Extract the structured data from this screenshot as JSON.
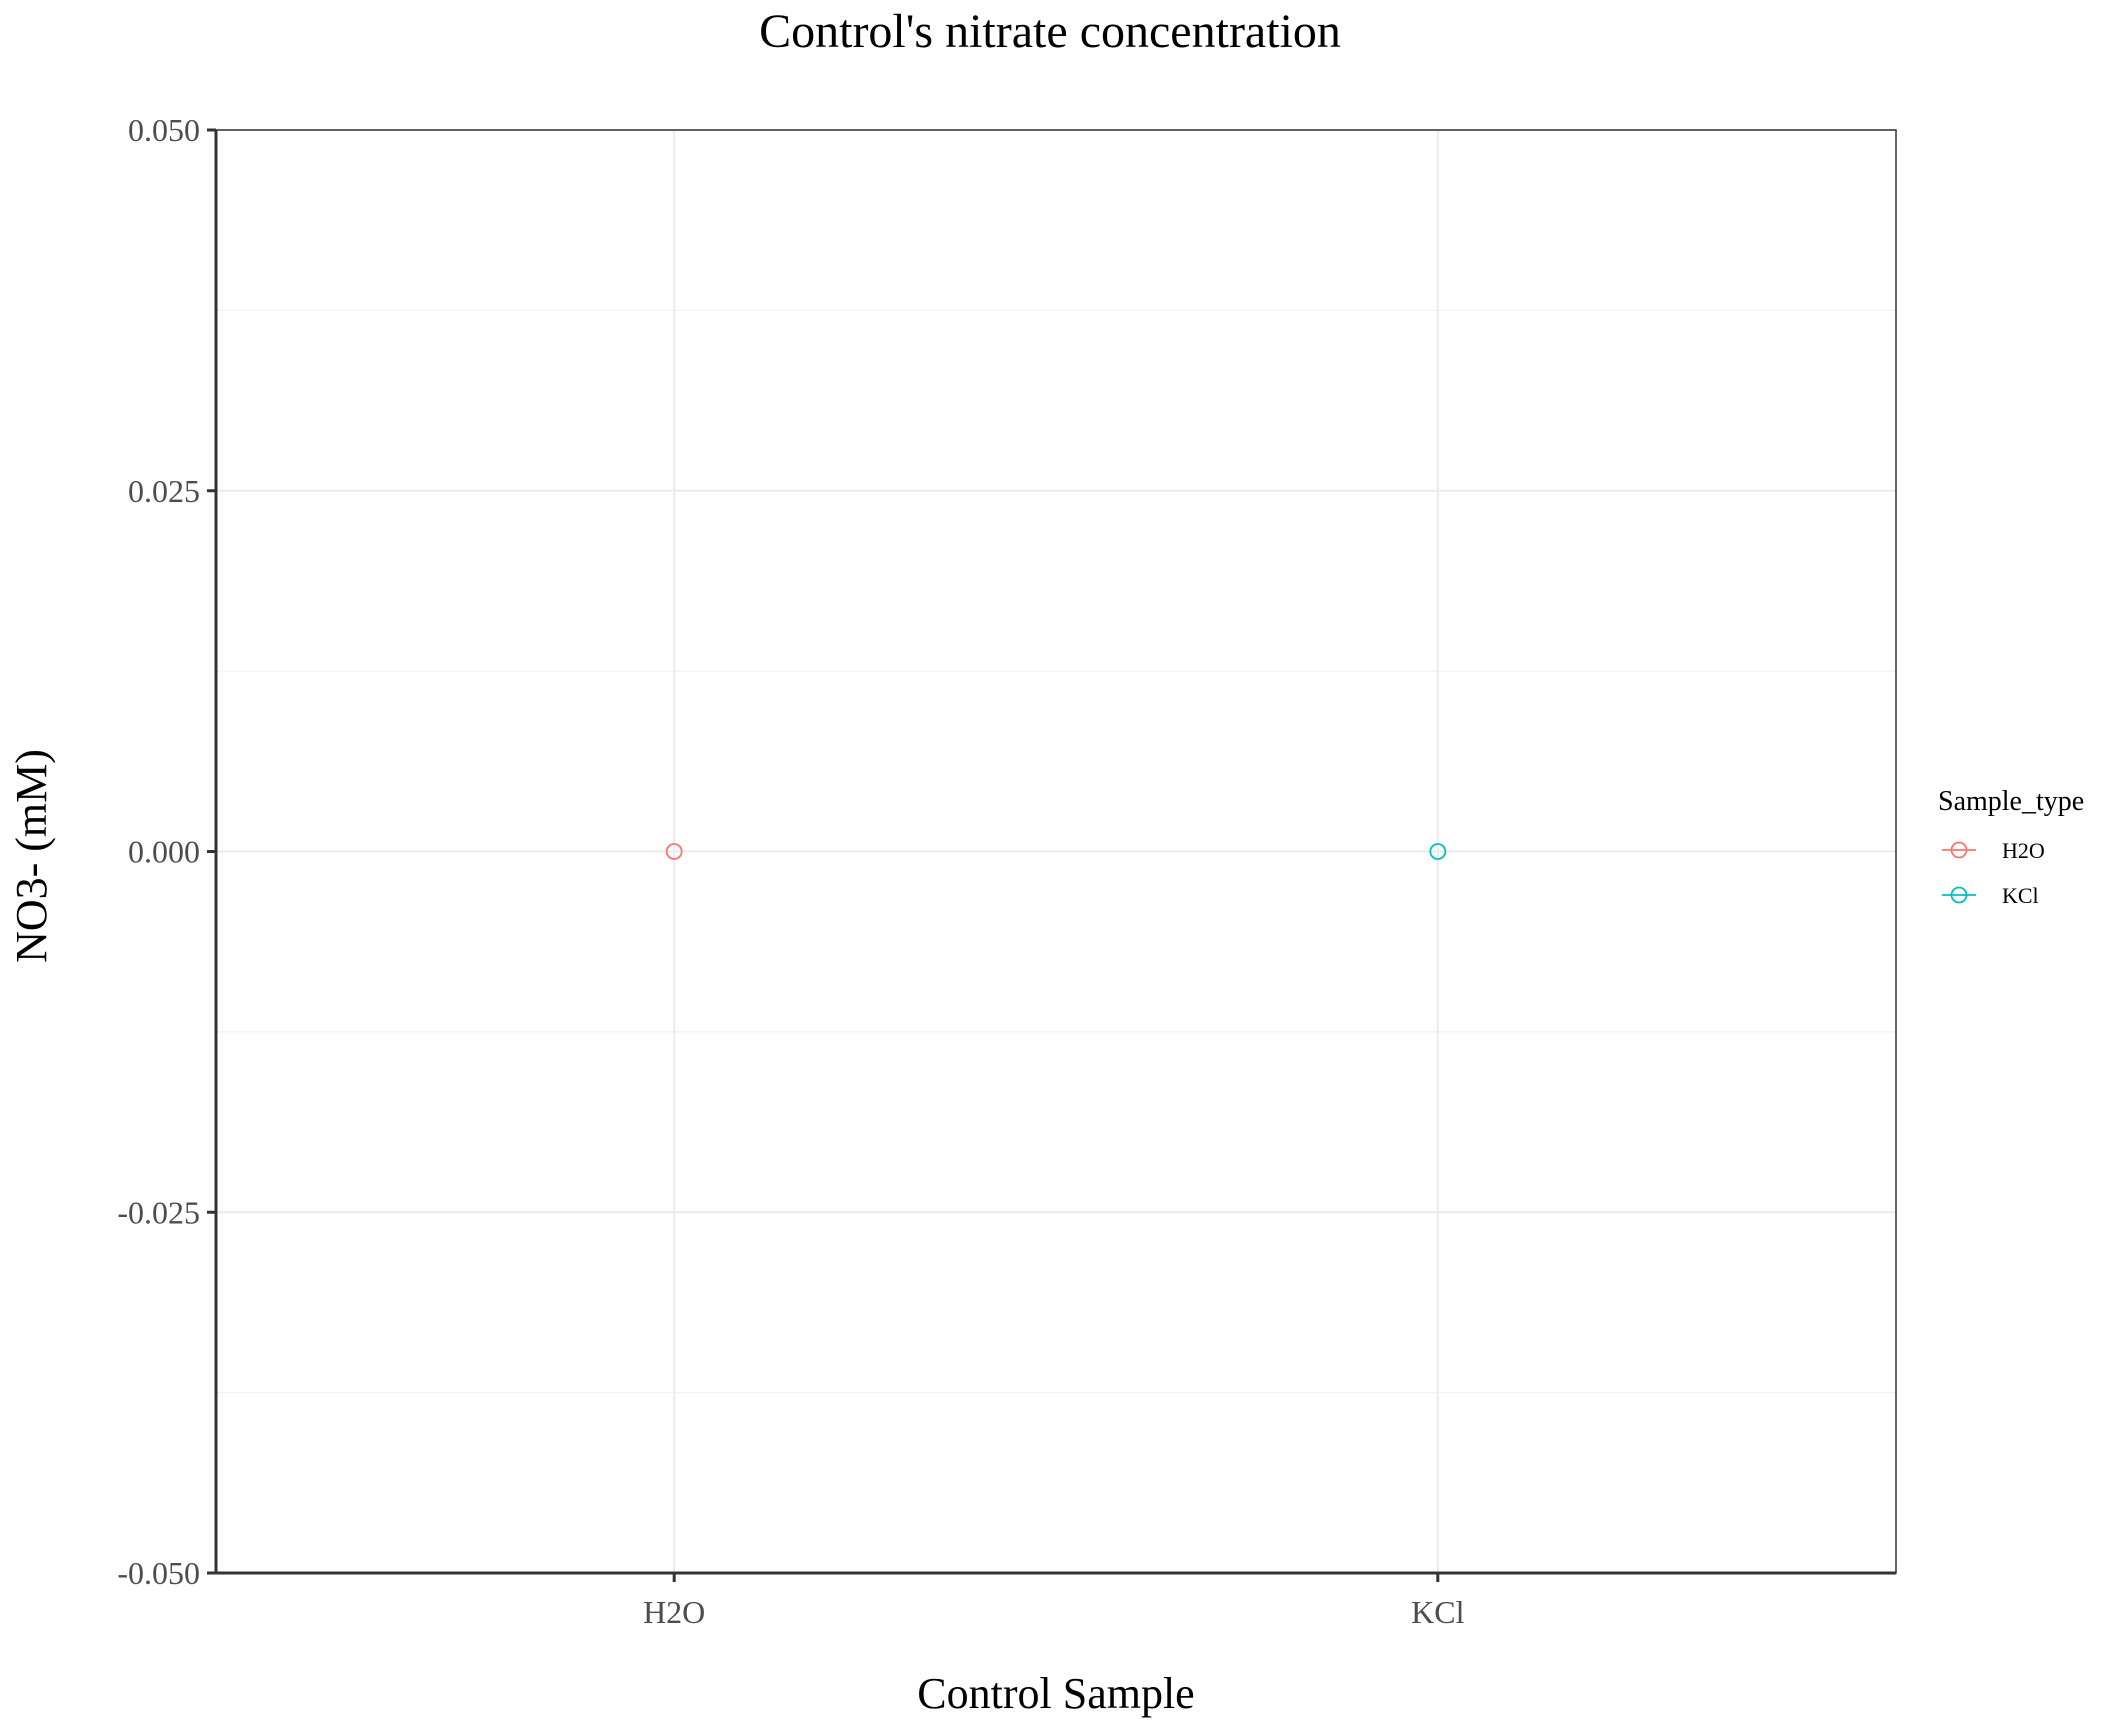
{
  "chart_data": {
    "type": "scatter",
    "title": "Control's nitrate concentration",
    "xlabel": "Control Sample",
    "ylabel": "NO3- (mM)",
    "categories": [
      "H2O",
      "KCl"
    ],
    "ylim": [
      -0.05,
      0.05
    ],
    "yticks": [
      -0.05,
      -0.025,
      0.0,
      0.025,
      0.05
    ],
    "ytick_labels": [
      "-0.050",
      "-0.025",
      "0.000",
      "0.025",
      "0.050"
    ],
    "grid": true,
    "legend": {
      "title": "Sample_type",
      "placement": "right",
      "entries": [
        "H2O",
        "KCl"
      ]
    },
    "series": [
      {
        "name": "H2O",
        "color": "#F8766D",
        "points": [
          {
            "x": "H2O",
            "y": 0.0
          }
        ]
      },
      {
        "name": "KCl",
        "color": "#00BFC4",
        "points": [
          {
            "x": "KCl",
            "y": 0.0
          }
        ]
      }
    ]
  }
}
